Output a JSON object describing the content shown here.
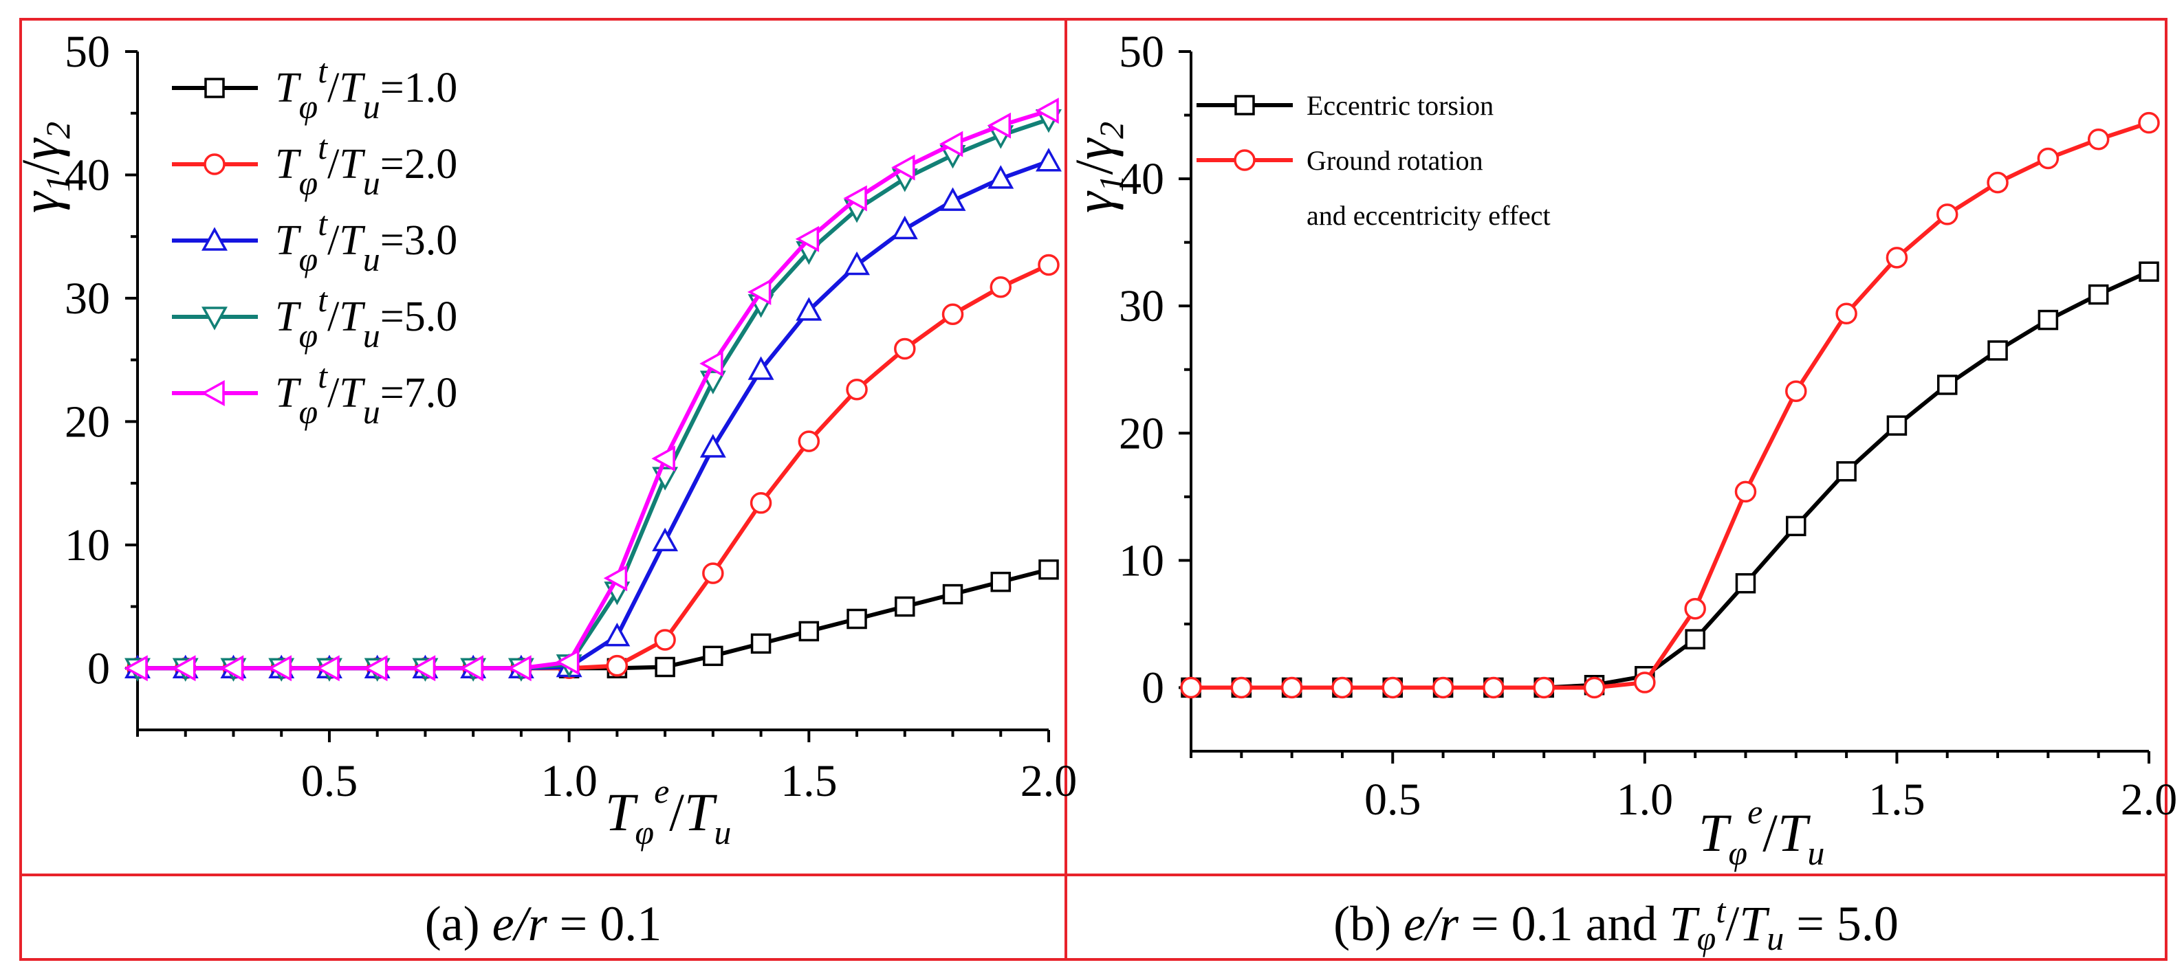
{
  "chart_data": [
    {
      "type": "line",
      "panel": "a",
      "caption": {
        "prefix": "(a) ",
        "var": "e/r",
        "rest": " = 0.1"
      },
      "ylabel": {
        "main": "γ",
        "sub1": "1",
        "slash": "/",
        "main2": "γ",
        "sub2": "2"
      },
      "xlabel": {
        "main": "T",
        "sub": "φ",
        "sup": "e",
        "slash": "/",
        "main2": "T",
        "sub2": "u"
      },
      "xlim": [
        0.1,
        2.0
      ],
      "ylim": [
        -5,
        50
      ],
      "xticks": [
        "0.5",
        "1.0",
        "1.5",
        "2.0"
      ],
      "xtick_values": [
        0.5,
        1.0,
        1.5,
        2.0
      ],
      "yticks": [
        "0",
        "10",
        "20",
        "30",
        "40",
        "50"
      ],
      "ytick_values": [
        0,
        10,
        20,
        30,
        40,
        50
      ],
      "legend_position": "top-left",
      "x": [
        0.1,
        0.2,
        0.3,
        0.4,
        0.5,
        0.6,
        0.7,
        0.8,
        0.9,
        1.0,
        1.1,
        1.2,
        1.3,
        1.4,
        1.5,
        1.6,
        1.7,
        1.8,
        1.9,
        2.0
      ],
      "series": [
        {
          "name": "T_φ^t/T_u=1.0",
          "legend": {
            "main": "T",
            "sub": "φ",
            "sup": "t",
            "slash": "/",
            "main2": "T",
            "sub2": "u",
            "rest": "=1.0"
          },
          "color": "#000000",
          "marker": "square",
          "values": [
            0,
            0,
            0,
            0,
            0,
            0,
            0,
            0,
            0,
            0,
            0,
            0.1,
            1.0,
            2.0,
            3.0,
            4.0,
            5.0,
            6.0,
            7.0,
            8.0
          ]
        },
        {
          "name": "T_φ^t/T_u=2.0",
          "legend": {
            "main": "T",
            "sub": "φ",
            "sup": "t",
            "slash": "/",
            "main2": "T",
            "sub2": "u",
            "rest": "=2.0"
          },
          "color": "#ff2222",
          "marker": "circle",
          "values": [
            0,
            0,
            0,
            0,
            0,
            0,
            0,
            0,
            0,
            0,
            0.2,
            2.3,
            7.7,
            13.4,
            18.4,
            22.6,
            25.9,
            28.7,
            30.9,
            32.7
          ]
        },
        {
          "name": "T_φ^t/T_u=3.0",
          "legend": {
            "main": "T",
            "sub": "φ",
            "sup": "t",
            "slash": "/",
            "main2": "T",
            "sub2": "u",
            "rest": "=3.0"
          },
          "color": "#1515e0",
          "marker": "triangle-up",
          "values": [
            0,
            0,
            0,
            0,
            0,
            0,
            0,
            0,
            0,
            0.1,
            2.6,
            10.3,
            17.9,
            24.2,
            29.0,
            32.7,
            35.6,
            37.9,
            39.7,
            41.1
          ]
        },
        {
          "name": "T_φ^t/T_u=5.0",
          "legend": {
            "main": "T",
            "sub": "φ",
            "sup": "t",
            "slash": "/",
            "main2": "T",
            "sub2": "u",
            "rest": "=5.0"
          },
          "color": "#128076",
          "marker": "triangle-down",
          "values": [
            0,
            0,
            0,
            0,
            0,
            0,
            0,
            0,
            0,
            0.3,
            6.2,
            15.5,
            23.3,
            29.5,
            33.8,
            37.2,
            39.7,
            41.6,
            43.2,
            44.5
          ]
        },
        {
          "name": "T_φ^t/T_u=7.0",
          "legend": {
            "main": "T",
            "sub": "φ",
            "sup": "t",
            "slash": "/",
            "main2": "T",
            "sub2": "u",
            "rest": "=7.0"
          },
          "color": "#ff00ff",
          "marker": "triangle-left",
          "values": [
            0,
            0,
            0,
            0,
            0,
            0,
            0,
            0,
            0,
            0.5,
            7.3,
            17.0,
            24.7,
            30.5,
            34.8,
            38.1,
            40.6,
            42.5,
            44.0,
            45.2
          ]
        }
      ]
    },
    {
      "type": "line",
      "panel": "b",
      "caption": {
        "prefix": "(b) ",
        "var": "e/r",
        "mid": " = 0.1 and ",
        "main": "T",
        "sub": "φ",
        "sup": "t",
        "slash": "/",
        "main2": "T",
        "sub2": "u",
        "rest": " = 5.0"
      },
      "ylabel": {
        "main": "γ",
        "sub1": "1",
        "slash": "/",
        "main2": "γ",
        "sub2": "2"
      },
      "xlabel": {
        "main": "T",
        "sub": "φ",
        "sup": "e",
        "slash": "/",
        "main2": "T",
        "sub2": "u"
      },
      "xlim": [
        0.1,
        2.0
      ],
      "ylim": [
        -5,
        50
      ],
      "xticks": [
        "0.5",
        "1.0",
        "1.5",
        "2.0"
      ],
      "xtick_values": [
        0.5,
        1.0,
        1.5,
        2.0
      ],
      "yticks": [
        "0",
        "10",
        "20",
        "30",
        "40",
        "50"
      ],
      "ytick_values": [
        0,
        10,
        20,
        30,
        40,
        50
      ],
      "legend_position": "top-left",
      "x": [
        0.1,
        0.2,
        0.3,
        0.4,
        0.5,
        0.6,
        0.7,
        0.8,
        0.9,
        1.0,
        1.1,
        1.2,
        1.3,
        1.4,
        1.5,
        1.6,
        1.7,
        1.8,
        1.9,
        2.0
      ],
      "series": [
        {
          "name": "Eccentric torsion",
          "legend_lines": [
            "Eccentric torsion"
          ],
          "color": "#000000",
          "marker": "square",
          "values": [
            0,
            0,
            0,
            0,
            0,
            0,
            0,
            0,
            0.2,
            0.9,
            3.8,
            8.2,
            12.7,
            17.0,
            20.6,
            23.8,
            26.5,
            28.9,
            30.9,
            32.7
          ]
        },
        {
          "name": "Ground rotation and eccentricity effect",
          "legend_lines": [
            "Ground rotation",
            "and eccentricity effect"
          ],
          "color": "#ff2222",
          "marker": "circle",
          "values": [
            0,
            0,
            0,
            0,
            0,
            0,
            0,
            0,
            0,
            0.4,
            6.2,
            15.4,
            23.3,
            29.4,
            33.8,
            37.2,
            39.7,
            41.6,
            43.1,
            44.4
          ]
        }
      ]
    }
  ],
  "colors": {
    "frame": "#e8232b",
    "axis": "#000000",
    "background": "#ffffff"
  }
}
